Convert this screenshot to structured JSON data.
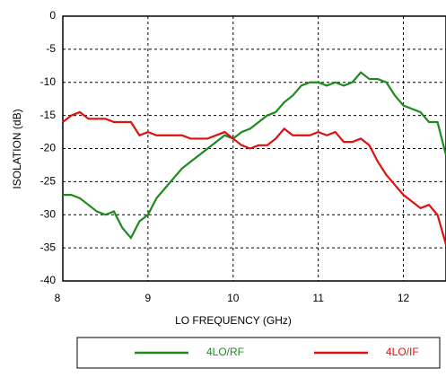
{
  "chart_data": {
    "type": "line",
    "xlabel": "LO FREQUENCY (GHz)",
    "ylabel": "ISOLATION  (dB)",
    "x": [
      8.0,
      8.1,
      8.2,
      8.3,
      8.4,
      8.5,
      8.6,
      8.7,
      8.8,
      8.9,
      9.0,
      9.1,
      9.2,
      9.3,
      9.4,
      9.5,
      9.6,
      9.7,
      9.8,
      9.9,
      10.0,
      10.1,
      10.2,
      10.3,
      10.4,
      10.5,
      10.6,
      10.7,
      10.8,
      10.9,
      11.0,
      11.1,
      11.2,
      11.3,
      11.4,
      11.5,
      11.6,
      11.7,
      11.8,
      11.9,
      12.0,
      12.1,
      12.2,
      12.3,
      12.4,
      12.5
    ],
    "series": [
      {
        "name": "4LO/RF",
        "color": "#1e8a1e",
        "values": [
          -27,
          -27,
          -27.5,
          -28.5,
          -29.5,
          -30,
          -29.5,
          -32,
          -33.5,
          -31,
          -30,
          -27.5,
          -26,
          -24.5,
          -23,
          -22,
          -21,
          -20,
          -19,
          -18,
          -18.5,
          -17.5,
          -17,
          -16,
          -15,
          -14.5,
          -13,
          -12,
          -10.5,
          -10,
          -10,
          -10.5,
          -10,
          -10.5,
          -10,
          -8.5,
          -9.5,
          -9.5,
          -10,
          -12,
          -13.5,
          -14,
          -14.5,
          -16,
          -16,
          -21
        ]
      },
      {
        "name": "4LO/IF",
        "color": "#e01010",
        "values": [
          -16,
          -15,
          -14.5,
          -15.5,
          -15.5,
          -15.5,
          -16,
          -16,
          -16,
          -18,
          -17.5,
          -18,
          -18,
          -18,
          -18,
          -18.5,
          -18.5,
          -18.5,
          -18,
          -17.5,
          -18.5,
          -19.5,
          -20,
          -19.5,
          -19.5,
          -18.5,
          -17,
          -18,
          -18,
          -18,
          -17.5,
          -18,
          -17.5,
          -19,
          -19,
          -18.5,
          -19.5,
          -22,
          -24,
          -25.5,
          -27,
          -28,
          -29,
          -28.5,
          -30,
          -34.5
        ]
      }
    ],
    "xlim": [
      8,
      12.5
    ],
    "xticks": [
      8,
      9,
      10,
      11,
      12
    ],
    "ylim": [
      -40,
      0
    ],
    "yticks": [
      0,
      -5,
      -10,
      -15,
      -20,
      -25,
      -30,
      -35,
      -40
    ],
    "grid": true,
    "legend": "bottom"
  }
}
